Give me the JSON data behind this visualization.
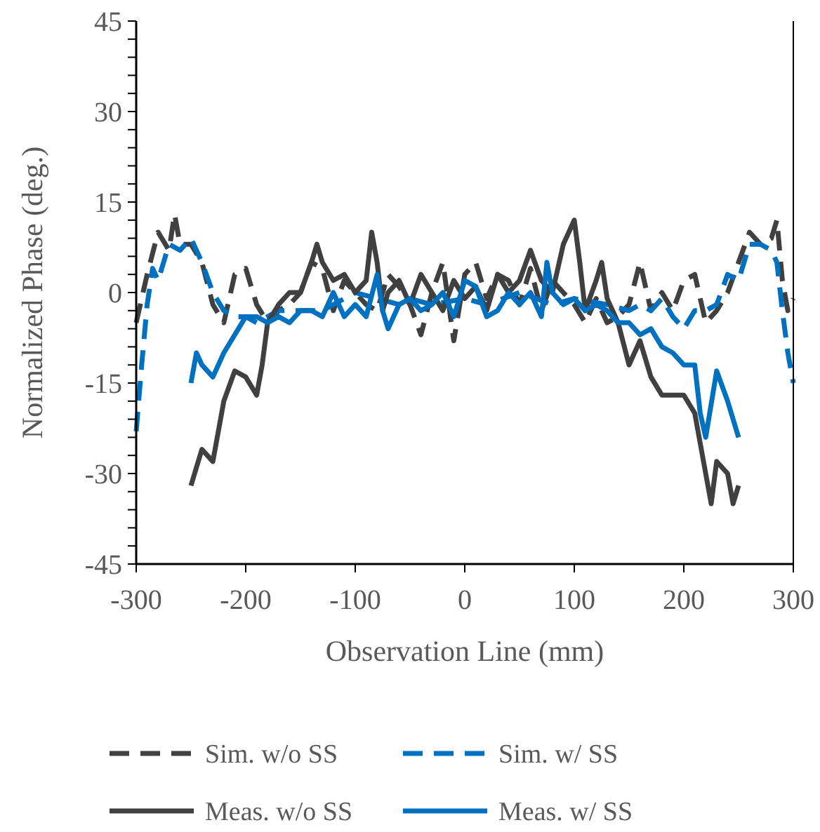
{
  "chart_data": {
    "type": "line",
    "xlabel": "Observation Line (mm)",
    "ylabel": "Normalized Phase (deg.)",
    "xlim": [
      -300,
      300
    ],
    "xticks": [
      -300,
      -200,
      -100,
      0,
      100,
      200,
      300
    ],
    "ylim": [
      -45,
      45
    ],
    "yticks": [
      -45,
      {
        "value": -42,
        "label": null
      },
      {
        "value": -39,
        "label": null
      },
      {
        "value": -36,
        "label": null
      },
      {
        "value": -33,
        "label": null
      },
      -30,
      {
        "value": -27,
        "label": null
      },
      {
        "value": -24,
        "label": null
      },
      {
        "value": -21,
        "label": null
      },
      {
        "value": -18,
        "label": null
      },
      -15,
      {
        "value": -12,
        "label": null
      },
      {
        "value": -9,
        "label": null
      },
      {
        "value": -6,
        "label": null
      },
      {
        "value": -3,
        "label": null
      },
      0,
      {
        "value": 3,
        "label": null
      },
      {
        "value": 6,
        "label": null
      },
      {
        "value": 9,
        "label": null
      },
      {
        "value": 12,
        "label": null
      },
      15,
      {
        "value": 18,
        "label": null
      },
      {
        "value": 21,
        "label": null
      },
      {
        "value": 24,
        "label": null
      },
      {
        "value": 27,
        "label": null
      },
      30,
      {
        "value": 33,
        "label": null
      },
      {
        "value": 36,
        "label": null
      },
      {
        "value": 39,
        "label": null
      },
      {
        "value": 42,
        "label": null
      },
      45
    ],
    "grid": false,
    "legend": "bottom",
    "series": [
      {
        "name": "Sim. w/o SS",
        "color": "#404040",
        "line_style": "dashed",
        "x": [
          -300,
          -290,
          -280,
          -270,
          -265,
          -260,
          -250,
          -240,
          -230,
          -220,
          -210,
          -200,
          -190,
          -180,
          -170,
          -160,
          -150,
          -140,
          -130,
          -120,
          -110,
          -100,
          -90,
          -80,
          -70,
          -60,
          -50,
          -40,
          -30,
          -20,
          -10,
          0,
          10,
          20,
          30,
          40,
          50,
          60,
          70,
          80,
          90,
          100,
          110,
          120,
          130,
          140,
          150,
          160,
          170,
          180,
          190,
          200,
          210,
          220,
          230,
          240,
          250,
          260,
          270,
          280,
          285,
          290,
          295,
          300
        ],
        "values": [
          -5,
          3,
          10,
          7,
          13,
          8,
          8,
          5,
          -2,
          -5,
          3,
          4,
          -2,
          -5,
          -3,
          -2,
          0,
          5,
          4,
          -3,
          2,
          0,
          -2,
          -3,
          3,
          1,
          -2,
          -7,
          0,
          5,
          -8,
          3,
          5,
          -1,
          3,
          2,
          -2,
          4,
          -3,
          2,
          0,
          -2,
          -5,
          -1,
          -5,
          -4,
          -2,
          5,
          -3,
          0,
          -3,
          2,
          3,
          -5,
          -3,
          0,
          5,
          10,
          8,
          9,
          12,
          2,
          -3,
          -1
        ]
      },
      {
        "name": "Sim. w/ SS",
        "color": "#0070c0",
        "line_style": "dashed",
        "x": [
          -300,
          -295,
          -290,
          -285,
          -280,
          -270,
          -260,
          -250,
          -240,
          -230,
          -220,
          -210,
          -200,
          -190,
          -180,
          -170,
          -160,
          -150,
          -140,
          -130,
          -120,
          -100,
          -80,
          -60,
          -50,
          -30,
          0,
          20,
          50,
          80,
          100,
          130,
          150,
          160,
          170,
          180,
          190,
          200,
          210,
          220,
          230,
          240,
          250,
          260,
          270,
          280,
          285,
          290,
          295,
          300
        ],
        "values": [
          -23,
          -12,
          -2,
          4,
          2,
          8,
          7,
          9,
          5,
          0,
          -3,
          -4,
          -4,
          -5,
          -4,
          -3,
          -3,
          -3,
          -3,
          -3,
          -2,
          0,
          -1,
          -2,
          -1,
          -2,
          -1,
          -2,
          0,
          -2,
          -1,
          -2,
          -3,
          -2,
          -3,
          -1,
          -4,
          -6,
          -3,
          -3,
          -2,
          3,
          2,
          8,
          8,
          7,
          5,
          -3,
          -10,
          -15
        ]
      },
      {
        "name": "Meas. w/o SS",
        "color": "#404040",
        "line_style": "solid",
        "x": [
          -250,
          -240,
          -230,
          -220,
          -210,
          -200,
          -190,
          -185,
          -180,
          -170,
          -160,
          -150,
          -140,
          -135,
          -130,
          -120,
          -110,
          -100,
          -90,
          -85,
          -80,
          -75,
          -70,
          -60,
          -50,
          -40,
          -30,
          -20,
          -10,
          0,
          10,
          20,
          30,
          40,
          50,
          60,
          70,
          80,
          90,
          100,
          105,
          110,
          120,
          125,
          130,
          140,
          150,
          160,
          170,
          180,
          190,
          200,
          210,
          220,
          225,
          230,
          240,
          245,
          250
        ],
        "values": [
          -32,
          -26,
          -28,
          -18,
          -13,
          -14,
          -17,
          -12,
          -5,
          -2,
          0,
          0,
          5,
          8,
          5,
          2,
          3,
          0,
          2,
          10,
          5,
          -3,
          0,
          2,
          -2,
          3,
          0,
          -3,
          2,
          -1,
          1,
          -3,
          3,
          0,
          2,
          7,
          2,
          0,
          8,
          12,
          5,
          -3,
          2,
          5,
          -1,
          -5,
          -12,
          -8,
          -14,
          -17,
          -17,
          -17,
          -20,
          -30,
          -35,
          -28,
          -30,
          -35,
          -32
        ]
      },
      {
        "name": "Meas. w/ SS",
        "color": "#0070c0",
        "line_style": "solid",
        "x": [
          -250,
          -245,
          -240,
          -230,
          -220,
          -210,
          -200,
          -190,
          -180,
          -170,
          -160,
          -150,
          -140,
          -130,
          -120,
          -110,
          -100,
          -90,
          -80,
          -75,
          -70,
          -60,
          -50,
          -40,
          -30,
          -20,
          -10,
          0,
          10,
          20,
          30,
          40,
          50,
          60,
          70,
          75,
          80,
          90,
          100,
          110,
          120,
          130,
          140,
          150,
          160,
          170,
          180,
          190,
          200,
          210,
          215,
          220,
          230,
          240,
          250
        ],
        "values": [
          -15,
          -10,
          -12,
          -14,
          -10,
          -7,
          -4,
          -4,
          -5,
          -4,
          -5,
          -3,
          -3,
          -4,
          0,
          -4,
          -2,
          -4,
          3,
          -3,
          -6,
          -2,
          -1,
          -3,
          -2,
          0,
          -4,
          2,
          1,
          -4,
          -3,
          0,
          -2,
          0,
          -4,
          5,
          0,
          -2,
          -1,
          -3,
          -2,
          -3,
          -5,
          -5,
          -7,
          -6,
          -9,
          -10,
          -12,
          -12,
          -20,
          -24,
          -13,
          -18,
          -24
        ]
      }
    ]
  }
}
